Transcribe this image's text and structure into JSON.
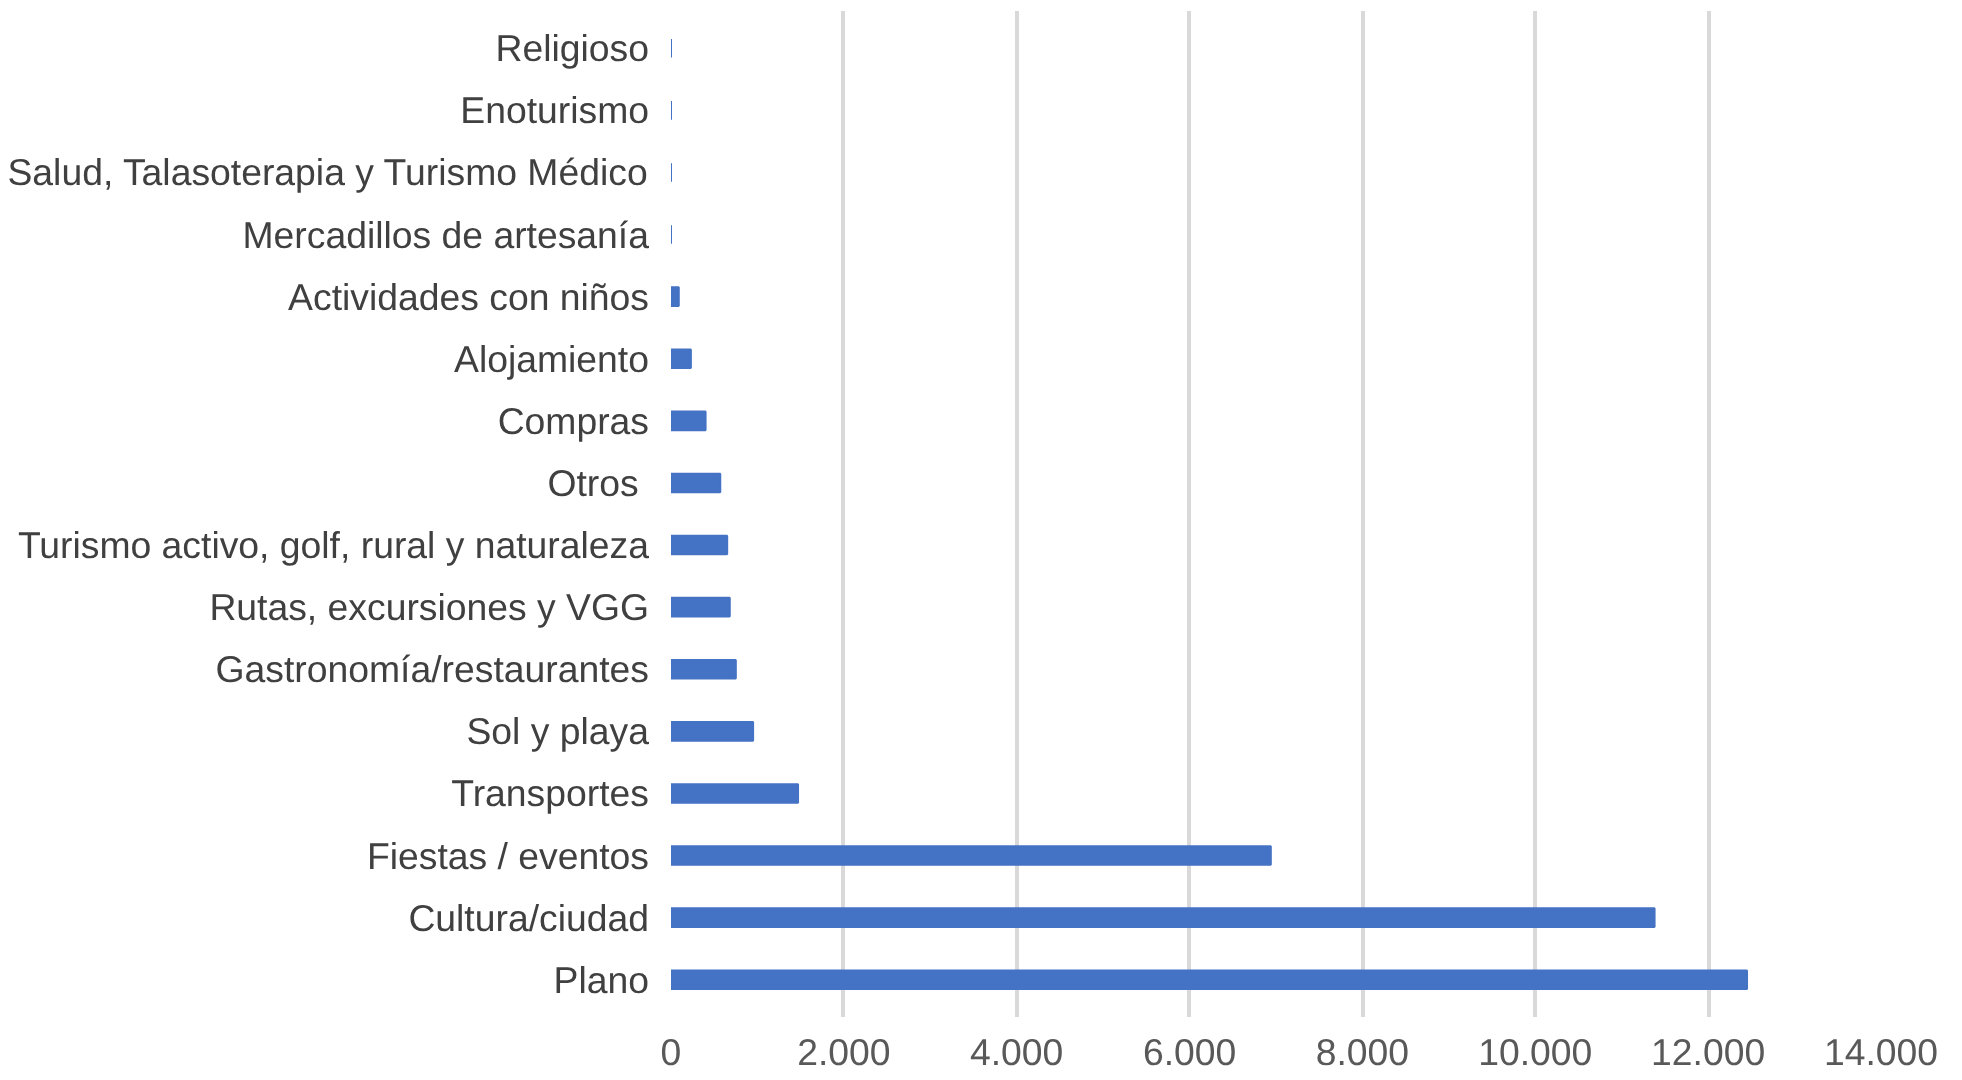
{
  "chart_data": {
    "type": "bar",
    "orientation": "horizontal",
    "categories": [
      "Religioso",
      "Enoturismo",
      "Salud, Talasoterapia y Turismo Médico",
      "Mercadillos de artesanía",
      "Actividades con niños",
      "Alojamiento",
      "Compras",
      "Otros ",
      "Turismo activo, golf, rural y naturaleza",
      "Rutas, excursiones y VGG",
      "Gastronomía/restaurantes",
      "Sol y playa",
      "Transportes",
      "Fiestas / eventos",
      "Cultura/ciudad",
      "Plano"
    ],
    "values": [
      0,
      0,
      0,
      0,
      90,
      230,
      400,
      570,
      650,
      680,
      750,
      950,
      1470,
      6940,
      11380,
      12450
    ],
    "color": "#4472c4",
    "xlim": [
      0,
      14000
    ],
    "xticks": [
      0,
      {
        "value": 2000,
        "label": "2.000"
      },
      {
        "value": 4000,
        "label": "4.000"
      },
      {
        "value": 6000,
        "label": "6.000"
      },
      {
        "value": 8000,
        "label": "8.000"
      },
      {
        "value": 10000,
        "label": "10.000"
      },
      {
        "value": 12000,
        "label": "12.000"
      },
      {
        "value": 14000,
        "label": "14.000"
      }
    ],
    "grid": "x"
  }
}
